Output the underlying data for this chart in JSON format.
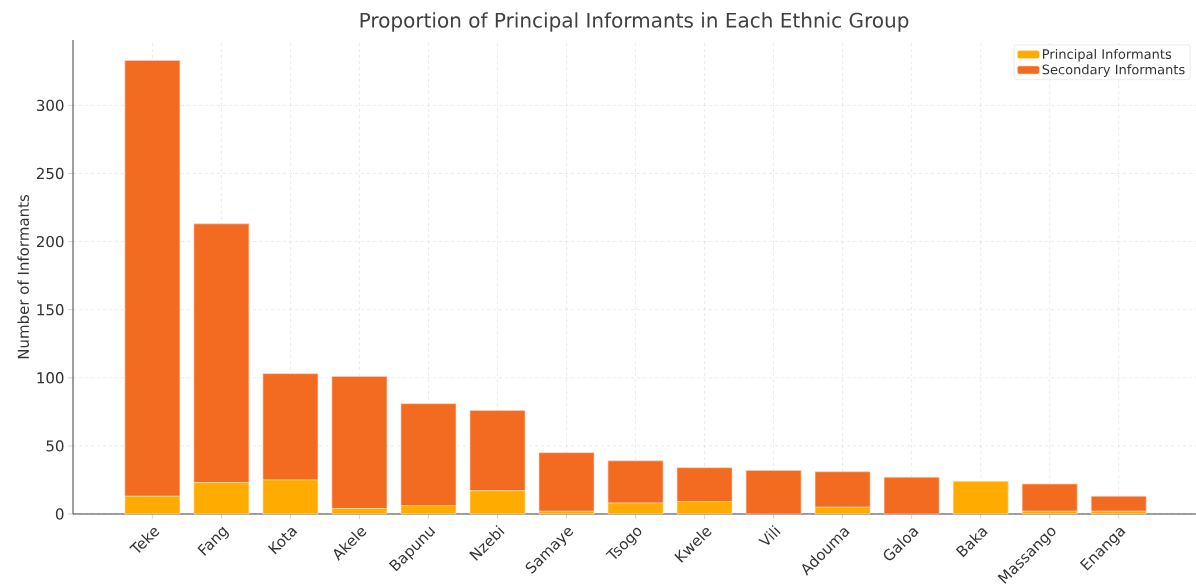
{
  "chart_data": {
    "type": "bar",
    "title": "Proportion of Principal Informants in Each Ethnic Group",
    "ylabel": "Number of Informants",
    "categories": [
      "Teke",
      "Fang",
      "Kota",
      "Akele",
      "Bapunu",
      "Nzebi",
      "Samaye",
      "Tsogo",
      "Kwele",
      "Vili",
      "Adouma",
      "Galoa",
      "Baka",
      "Massango",
      "Enanga"
    ],
    "series": [
      {
        "name": "Principal Informants",
        "color": "#ffab00",
        "values": [
          13,
          23,
          25,
          4,
          6,
          17,
          2,
          8,
          9,
          0,
          5,
          0,
          24,
          2,
          2
        ]
      },
      {
        "name": "Secondary Informants",
        "color": "#f26b21",
        "values": [
          320,
          190,
          78,
          97,
          75,
          59,
          43,
          31,
          25,
          32,
          26,
          27,
          0,
          20,
          11
        ]
      }
    ],
    "stacked": true,
    "ylim": [
      0,
      348
    ],
    "yticks": [
      0,
      50,
      100,
      150,
      200,
      250,
      300
    ],
    "grid": true,
    "legend": "top right"
  }
}
